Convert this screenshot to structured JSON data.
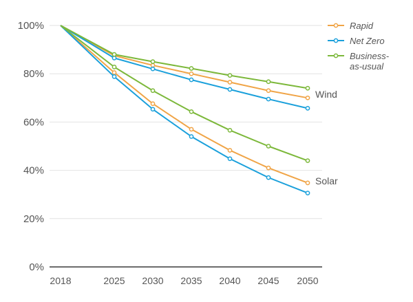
{
  "chart_data": {
    "type": "line",
    "x": [
      2018,
      2025,
      2030,
      2035,
      2040,
      2045,
      2050
    ],
    "x_tick_labels": [
      "2018",
      "2025",
      "2030",
      "2035",
      "2040",
      "2045",
      "2050"
    ],
    "y_tick_labels": [
      "0%",
      "20%",
      "40%",
      "60%",
      "80%",
      "100%"
    ],
    "y_ticks": [
      0,
      20,
      40,
      60,
      80,
      100
    ],
    "ylim": [
      0,
      100
    ],
    "grid": true,
    "legend_position": "top-right",
    "legend": [
      {
        "name": "Rapid",
        "color": "#f0a446"
      },
      {
        "name": "Net Zero",
        "color": "#1aa0db"
      },
      {
        "name": "Business-as-usual",
        "color": "#7cb83a",
        "label_lines": [
          "Business-",
          "as-usual"
        ]
      }
    ],
    "annotations": [
      {
        "text": "Wind",
        "group": "wind"
      },
      {
        "text": "Solar",
        "group": "solar"
      }
    ],
    "series": [
      {
        "name": "Rapid",
        "group": "wind",
        "color": "#f0a446",
        "values": [
          100,
          87.5,
          83.5,
          80,
          76.5,
          73,
          70
        ]
      },
      {
        "name": "Net Zero",
        "group": "wind",
        "color": "#1aa0db",
        "values": [
          100,
          86.5,
          82,
          77.5,
          73.5,
          69.5,
          65.7
        ]
      },
      {
        "name": "Business-as-usual",
        "group": "wind",
        "color": "#7cb83a",
        "values": [
          100,
          88,
          85,
          82.2,
          79.3,
          76.7,
          74
        ]
      },
      {
        "name": "Rapid",
        "group": "solar",
        "color": "#f0a446",
        "values": [
          100,
          80.5,
          67.6,
          57,
          48.3,
          41,
          34.8
        ]
      },
      {
        "name": "Net Zero",
        "group": "solar",
        "color": "#1aa0db",
        "values": [
          100,
          78.8,
          65.3,
          54,
          44.8,
          37,
          30.6
        ]
      },
      {
        "name": "Business-as-usual",
        "group": "solar",
        "color": "#7cb83a",
        "values": [
          100,
          82.8,
          73,
          64.3,
          56.6,
          50,
          44
        ]
      }
    ]
  }
}
